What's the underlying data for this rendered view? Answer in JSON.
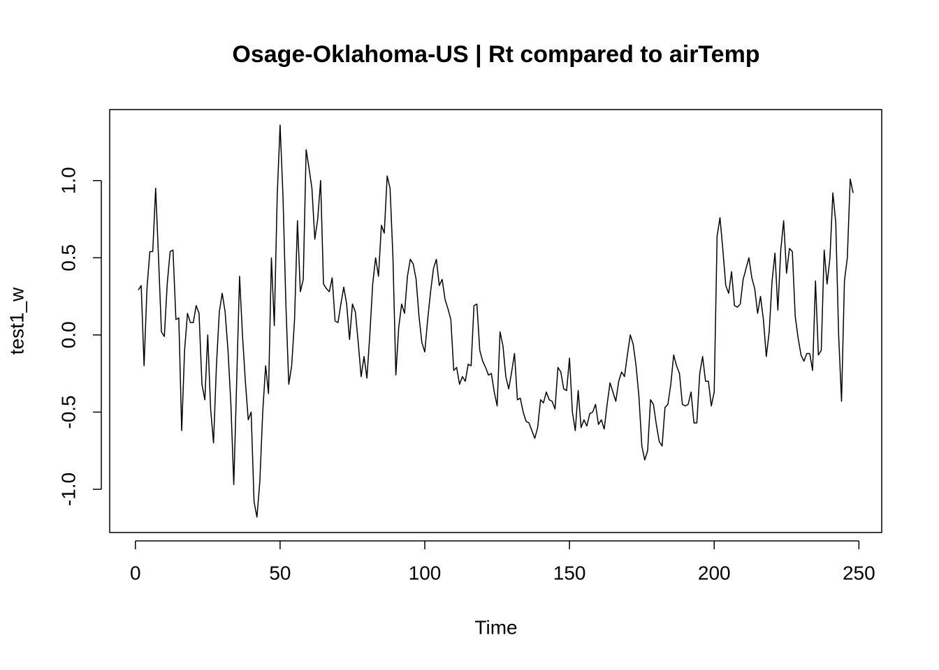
{
  "chart_data": {
    "type": "line",
    "title": "Osage-Oklahoma-US | Rt compared to airTemp",
    "xlabel": "Time",
    "ylabel": "test1_w",
    "xlim": [
      -8.88,
      257.88
    ],
    "ylim": [
      -1.28,
      1.46
    ],
    "xticks": [
      0,
      50,
      100,
      150,
      200,
      250
    ],
    "yticks": [
      {
        "value": -1,
        "label": "-1.0"
      },
      -0.5,
      {
        "value": 0,
        "label": "0.0"
      },
      0.5,
      {
        "value": 1,
        "label": "1.0"
      }
    ],
    "grid": false,
    "color": "#000000",
    "x": [
      1,
      2,
      3,
      4,
      5,
      6,
      7,
      8,
      9,
      10,
      11,
      12,
      13,
      14,
      15,
      16,
      17,
      18,
      19,
      20,
      21,
      22,
      23,
      24,
      25,
      26,
      27,
      28,
      29,
      30,
      31,
      32,
      33,
      34,
      35,
      36,
      37,
      38,
      39,
      40,
      41,
      42,
      43,
      44,
      45,
      46,
      47,
      48,
      49,
      50,
      51,
      52,
      53,
      54,
      55,
      56,
      57,
      58,
      59,
      60,
      61,
      62,
      63,
      64,
      65,
      66,
      67,
      68,
      69,
      70,
      71,
      72,
      73,
      74,
      75,
      76,
      77,
      78,
      79,
      80,
      81,
      82,
      83,
      84,
      85,
      86,
      87,
      88,
      89,
      90,
      91,
      92,
      93,
      94,
      95,
      96,
      97,
      98,
      99,
      100,
      101,
      102,
      103,
      104,
      105,
      106,
      107,
      108,
      109,
      110,
      111,
      112,
      113,
      114,
      115,
      116,
      117,
      118,
      119,
      120,
      121,
      122,
      123,
      124,
      125,
      126,
      127,
      128,
      129,
      130,
      131,
      132,
      133,
      134,
      135,
      136,
      137,
      138,
      139,
      140,
      141,
      142,
      143,
      144,
      145,
      146,
      147,
      148,
      149,
      150,
      151,
      152,
      153,
      154,
      155,
      156,
      157,
      158,
      159,
      160,
      161,
      162,
      163,
      164,
      165,
      166,
      167,
      168,
      169,
      170,
      171,
      172,
      173,
      174,
      175,
      176,
      177,
      178,
      179,
      180,
      181,
      182,
      183,
      184,
      185,
      186,
      187,
      188,
      189,
      190,
      191,
      192,
      193,
      194,
      195,
      196,
      197,
      198,
      199,
      200,
      201,
      202,
      203,
      204,
      205,
      206,
      207,
      208,
      209,
      210,
      211,
      212,
      213,
      214,
      215,
      216,
      217,
      218,
      219,
      220,
      221,
      222,
      223,
      224,
      225,
      226,
      227,
      228,
      229,
      230,
      231,
      232,
      233,
      234,
      235,
      236,
      237,
      238,
      239,
      240,
      241,
      242,
      243,
      244,
      245,
      246,
      247,
      248
    ],
    "values": [
      0.29,
      0.32,
      -0.2,
      0.3,
      0.54,
      0.54,
      0.95,
      0.5,
      0.02,
      -0.01,
      0.33,
      0.54,
      0.55,
      0.1,
      0.11,
      -0.62,
      -0.1,
      0.14,
      0.08,
      0.08,
      0.19,
      0.14,
      -0.32,
      -0.42,
      0.0,
      -0.48,
      -0.7,
      -0.2,
      0.15,
      0.27,
      0.15,
      -0.1,
      -0.45,
      -0.97,
      -0.3,
      0.38,
      0.0,
      -0.3,
      -0.55,
      -0.5,
      -1.08,
      -1.18,
      -0.95,
      -0.5,
      -0.2,
      -0.38,
      0.5,
      0.06,
      0.9,
      1.36,
      0.9,
      0.2,
      -0.32,
      -0.2,
      0.1,
      0.74,
      0.28,
      0.36,
      1.2,
      1.08,
      0.95,
      0.62,
      0.75,
      1.0,
      0.33,
      0.3,
      0.28,
      0.37,
      0.09,
      0.08,
      0.2,
      0.31,
      0.2,
      -0.03,
      0.2,
      0.15,
      -0.05,
      -0.27,
      -0.14,
      -0.28,
      0.0,
      0.33,
      0.5,
      0.38,
      0.71,
      0.66,
      1.03,
      0.95,
      0.5,
      -0.26,
      0.05,
      0.2,
      0.14,
      0.38,
      0.49,
      0.46,
      0.36,
      0.12,
      -0.05,
      -0.11,
      0.1,
      0.28,
      0.43,
      0.49,
      0.32,
      0.36,
      0.23,
      0.17,
      0.1,
      -0.23,
      -0.21,
      -0.32,
      -0.27,
      -0.3,
      -0.19,
      -0.2,
      0.19,
      0.2,
      -0.1,
      -0.17,
      -0.21,
      -0.26,
      -0.25,
      -0.37,
      -0.46,
      0.02,
      -0.07,
      -0.27,
      -0.35,
      -0.24,
      -0.12,
      -0.42,
      -0.41,
      -0.5,
      -0.56,
      -0.57,
      -0.62,
      -0.67,
      -0.6,
      -0.42,
      -0.44,
      -0.37,
      -0.42,
      -0.43,
      -0.48,
      -0.21,
      -0.24,
      -0.35,
      -0.36,
      -0.15,
      -0.5,
      -0.62,
      -0.36,
      -0.6,
      -0.55,
      -0.59,
      -0.51,
      -0.5,
      -0.45,
      -0.58,
      -0.55,
      -0.61,
      -0.45,
      -0.31,
      -0.37,
      -0.43,
      -0.3,
      -0.24,
      -0.27,
      -0.13,
      0.0,
      -0.06,
      -0.2,
      -0.4,
      -0.72,
      -0.81,
      -0.75,
      -0.42,
      -0.45,
      -0.58,
      -0.69,
      -0.72,
      -0.47,
      -0.45,
      -0.32,
      -0.13,
      -0.2,
      -0.25,
      -0.45,
      -0.46,
      -0.45,
      -0.37,
      -0.57,
      -0.57,
      -0.25,
      -0.14,
      -0.3,
      -0.3,
      -0.46,
      -0.37,
      0.64,
      0.76,
      0.55,
      0.32,
      0.27,
      0.41,
      0.19,
      0.18,
      0.2,
      0.36,
      0.43,
      0.5,
      0.37,
      0.3,
      0.14,
      0.25,
      0.1,
      -0.14,
      0.02,
      0.35,
      0.53,
      0.16,
      0.55,
      0.74,
      0.4,
      0.56,
      0.54,
      0.12,
      -0.02,
      -0.13,
      -0.17,
      -0.12,
      -0.12,
      -0.23,
      0.35,
      -0.13,
      -0.1,
      0.55,
      0.33,
      0.5,
      0.92,
      0.73,
      0.0,
      -0.43,
      0.35,
      0.5,
      1.01,
      0.92
    ]
  }
}
